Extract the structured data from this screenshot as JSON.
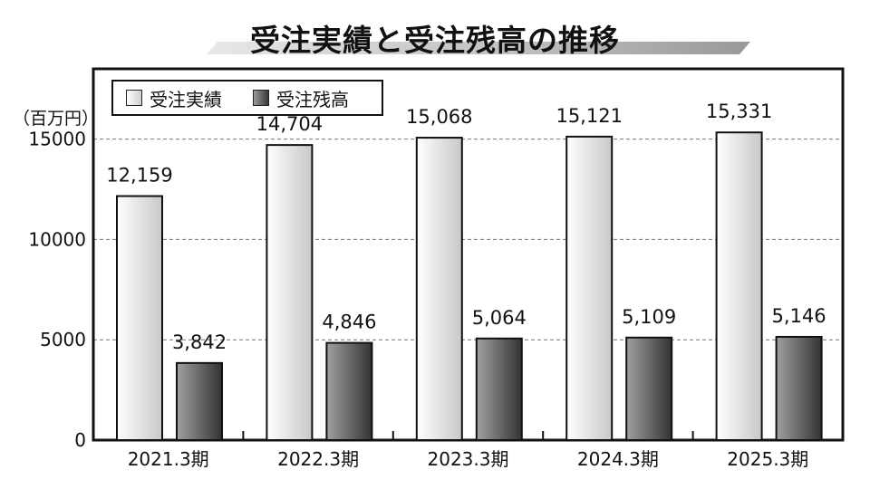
{
  "title": "受注実績と受注残高の推移",
  "chart_data": {
    "type": "bar",
    "categories": [
      "2021.3期",
      "2022.3期",
      "2023.3期",
      "2024.3期",
      "2025.3期"
    ],
    "series": [
      {
        "name": "受注実績",
        "values": [
          12159,
          14704,
          15068,
          15121,
          15331
        ],
        "labels": [
          "12,159",
          "14,704",
          "15,068",
          "15,121",
          "15,331"
        ]
      },
      {
        "name": "受注残高",
        "values": [
          3842,
          4846,
          5064,
          5109,
          5146
        ],
        "labels": [
          "3,842",
          "4,846",
          "5,064",
          "5,109",
          "5,146"
        ]
      }
    ],
    "yunit": "（百万円）",
    "ylim": [
      0,
      18500
    ],
    "yticks": [
      0,
      5000,
      10000,
      15000
    ],
    "ytick_labels": [
      "0",
      "5000",
      "10000",
      "15000"
    ],
    "grid": "dashed horizontal",
    "legend": "top-left"
  },
  "colors": {
    "frame": "#111111",
    "grid": "#777777"
  }
}
